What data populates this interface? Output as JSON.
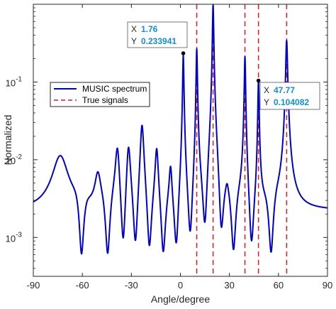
{
  "chart_data": {
    "type": "line",
    "title": "",
    "xlabel": "Angle/degree",
    "ylabel": "Normalized",
    "xlim": [
      -90,
      90
    ],
    "ylim_log10": [
      -3.5,
      0
    ],
    "y_scale": "log",
    "x_ticks": [
      -90,
      -60,
      -30,
      0,
      30,
      60,
      90
    ],
    "x_tick_labels": [
      "-90",
      "-60",
      "-30",
      "0",
      "30",
      "60",
      "90"
    ],
    "y_ticks": [
      0.001,
      0.01,
      0.1
    ],
    "y_tick_labels": [
      {
        "base": "10",
        "exp": "-3"
      },
      {
        "base": "10",
        "exp": "-2"
      },
      {
        "base": "10",
        "exp": "-1"
      }
    ],
    "grid": false,
    "legend_position": "upper-left",
    "series": [
      {
        "name": "MUSIC spectrum",
        "color": "#0000cd",
        "style": "solid",
        "baseline": 0.0022,
        "peaks": [
          {
            "x": -73.5,
            "y": 0.009,
            "w": 4.5
          },
          {
            "x": -50.5,
            "y": 0.0042,
            "w": 1.8
          },
          {
            "x": -38.5,
            "y": 0.0125,
            "w": 1.2
          },
          {
            "x": -31.8,
            "y": 0.014,
            "w": 1.1
          },
          {
            "x": -23.5,
            "y": 0.027,
            "w": 1.0
          },
          {
            "x": -14.5,
            "y": 0.012,
            "w": 0.9
          },
          {
            "x": -6.0,
            "y": 0.006,
            "w": 0.8
          },
          {
            "x": 1.76,
            "y": 0.233941,
            "w": 0.35
          },
          {
            "x": 10.0,
            "y": 0.28,
            "w": 0.35
          },
          {
            "x": 20.0,
            "y": 1.0,
            "w": 0.35
          },
          {
            "x": 28.5,
            "y": 0.00135,
            "w": 1.0
          },
          {
            "x": 39.5,
            "y": 0.22,
            "w": 0.35
          },
          {
            "x": 47.77,
            "y": 0.104082,
            "w": 0.35
          },
          {
            "x": 65.0,
            "y": 0.34,
            "w": 0.5
          }
        ],
        "dips": [
          {
            "x": -60.5,
            "y": 0.00052
          },
          {
            "x": -44.5,
            "y": 0.00072
          },
          {
            "x": -35.0,
            "y": 0.0009
          },
          {
            "x": -27.5,
            "y": 0.00062
          },
          {
            "x": -19.0,
            "y": 0.00062
          },
          {
            "x": -10.5,
            "y": 0.00048
          },
          {
            "x": -2.5,
            "y": 0.0011
          },
          {
            "x": 6.0,
            "y": 0.0007
          },
          {
            "x": 15.0,
            "y": 0.00065
          },
          {
            "x": 25.0,
            "y": 0.00072
          },
          {
            "x": 32.5,
            "y": 0.00048
          },
          {
            "x": 43.5,
            "y": 0.0007
          },
          {
            "x": 55.5,
            "y": 0.0007
          }
        ]
      },
      {
        "name": "True signals",
        "color": "#e31a1c",
        "style": "dashed",
        "x": [
          10,
          20,
          39.5,
          47.77,
          65
        ]
      }
    ],
    "datatips": [
      {
        "x_label": "X",
        "x_value": "1.76",
        "y_label": "Y",
        "y_value": "0.233941",
        "x": 1.76,
        "y": 0.233941
      },
      {
        "x_label": "X",
        "x_value": "47.77",
        "y_label": "Y",
        "y_value": "0.104082",
        "x": 47.77,
        "y": 0.104082
      }
    ]
  }
}
